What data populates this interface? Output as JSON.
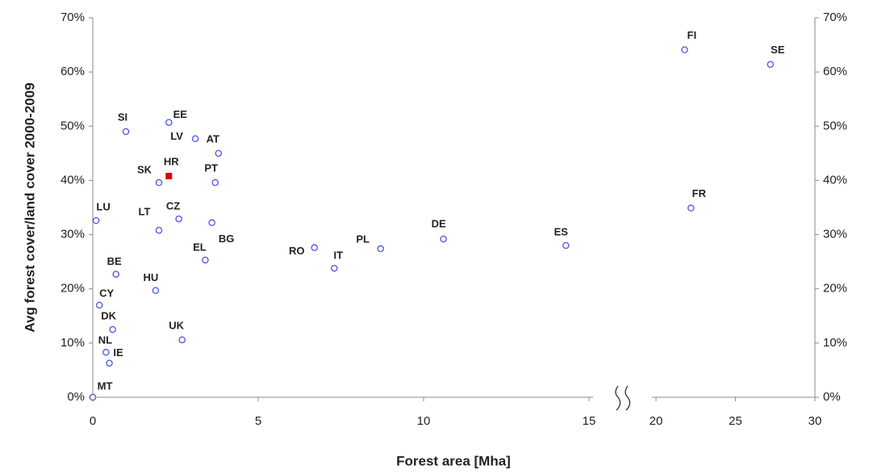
{
  "chart_data": {
    "type": "scatter",
    "x_label": "Forest area [Mha]",
    "y_label": "Avg forest cover/land cover 2000-2009",
    "labels": [
      "FI",
      "SE",
      "FR",
      "ES",
      "DE",
      "PL",
      "IT",
      "RO",
      "EE",
      "SI",
      "LV",
      "AT",
      "SK",
      "HR",
      "PT",
      "LU",
      "LT",
      "CZ",
      "BG",
      "EL",
      "BE",
      "HU",
      "CY",
      "DK",
      "UK",
      "NL",
      "IE",
      "MT"
    ],
    "x": [
      21.8,
      27.2,
      22.2,
      14.3,
      10.6,
      8.7,
      7.3,
      6.7,
      2.3,
      1.0,
      3.1,
      3.8,
      2.0,
      2.3,
      3.7,
      0.1,
      2.0,
      2.6,
      3.6,
      3.4,
      0.7,
      1.9,
      0.2,
      0.6,
      2.7,
      0.4,
      0.5,
      0.0
    ],
    "y": [
      64.1,
      61.4,
      34.9,
      28.0,
      29.2,
      27.4,
      23.8,
      27.6,
      50.7,
      49.0,
      47.7,
      45.0,
      39.6,
      40.8,
      39.6,
      32.6,
      30.8,
      32.9,
      32.2,
      25.3,
      22.7,
      19.7,
      17.0,
      12.5,
      10.6,
      8.3,
      6.3,
      0.0
    ],
    "colors": [
      "#4a55e0",
      "#4a55e0",
      "#4a55e0",
      "#4a55e0",
      "#4a55e0",
      "#4a55e0",
      "#4a55e0",
      "#4a55e0",
      "#4a55e0",
      "#4a55e0",
      "#4a55e0",
      "#4a55e0",
      "#4a55e0",
      "#e00000",
      "#4a55e0",
      "#4a55e0",
      "#4a55e0",
      "#4a55e0",
      "#4a55e0",
      "#4a55e0",
      "#4a55e0",
      "#4a55e0",
      "#4a55e0",
      "#4a55e0",
      "#4a55e0",
      "#4a55e0",
      "#4a55e0",
      "#4a55e0"
    ],
    "markers": [
      "circle",
      "circle",
      "circle",
      "circle",
      "circle",
      "circle",
      "circle",
      "circle",
      "circle",
      "circle",
      "circle",
      "circle",
      "circle",
      "square",
      "circle",
      "circle",
      "circle",
      "circle",
      "circle",
      "circle",
      "circle",
      "circle",
      "circle",
      "circle",
      "circle",
      "circle",
      "circle",
      "circle"
    ],
    "x_segments": [
      {
        "xlim": [
          0,
          15
        ],
        "xticks": [
          0,
          5,
          10,
          15
        ]
      },
      {
        "xlim": [
          20,
          30
        ],
        "xticks": [
          20,
          25,
          30
        ]
      }
    ],
    "ylim": [
      0,
      70
    ],
    "yticks": [
      {
        "value": 0,
        "label": "0%"
      },
      {
        "value": 10,
        "label": "10%"
      },
      {
        "value": 20,
        "label": "20%"
      },
      {
        "value": 30,
        "label": "30%"
      },
      {
        "value": 40,
        "label": "40%"
      },
      {
        "value": 50,
        "label": "50%"
      },
      {
        "value": 60,
        "label": "60%"
      },
      {
        "value": 70,
        "label": "70%"
      }
    ],
    "y2lim": [
      0,
      70
    ],
    "y2ticks": [
      {
        "value": 0,
        "label": "0%"
      },
      {
        "value": 10,
        "label": "10%"
      },
      {
        "value": 20,
        "label": "20%"
      },
      {
        "value": 30,
        "label": "30%"
      },
      {
        "value": 40,
        "label": "40%"
      },
      {
        "value": 50,
        "label": "50%"
      },
      {
        "value": 60,
        "label": "60%"
      },
      {
        "value": 70,
        "label": "70%"
      }
    ]
  }
}
